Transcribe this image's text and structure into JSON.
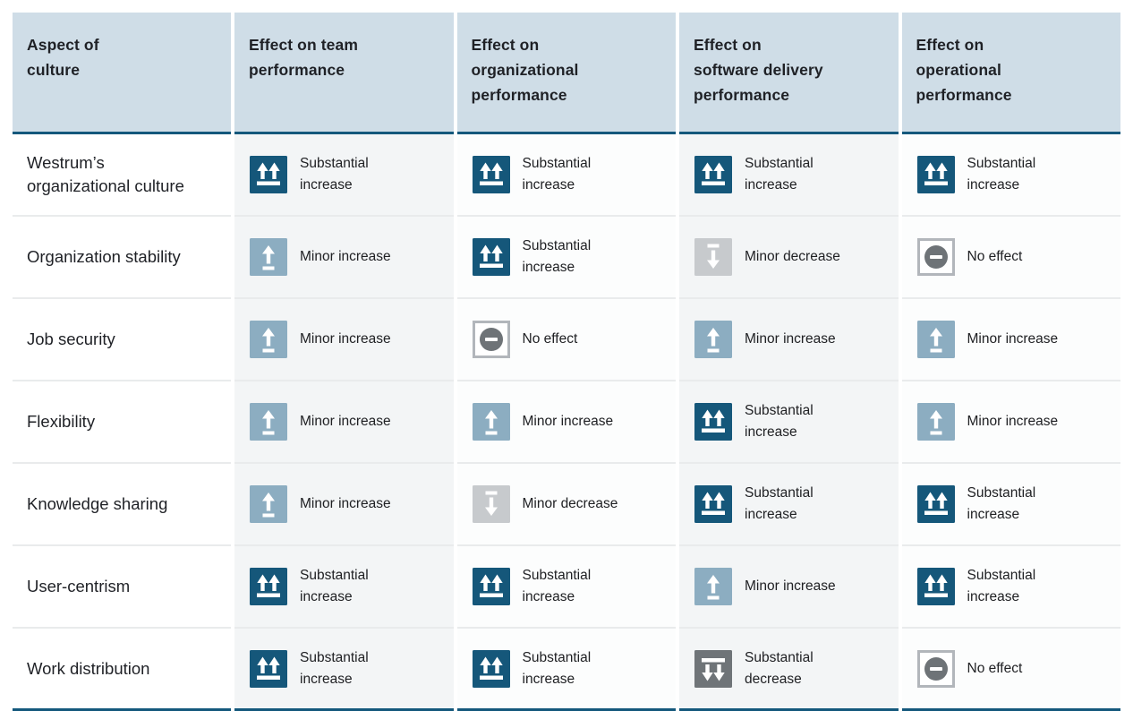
{
  "colors": {
    "header_bg": "#cfdde7",
    "accent_border": "#14587c",
    "row_divider": "#e9ebec",
    "heading_text": "#1f2126",
    "cell_text": "#202124",
    "shaded_column_bg": "#f3f5f6",
    "plain_column_bg": "#fcfdfd",
    "tile_substantial_increase": "#15577a",
    "tile_minor_increase": "#8cadc1",
    "tile_minor_decrease": "#c7cacd",
    "tile_substantial_decrease": "#6f7478",
    "tile_no_effect_fill": "#ffffff",
    "tile_no_effect_border": "#b2b6bb",
    "tile_no_effect_circle": "#6e7377",
    "icon_glyph": "#ffffff"
  },
  "header": {
    "columns": [
      {
        "id": "aspect",
        "label": "Aspect of\nculture"
      },
      {
        "id": "team",
        "label": "Effect on team\nperformance"
      },
      {
        "id": "organizational",
        "label": "Effect on\norganizational\nperformance"
      },
      {
        "id": "software_delivery",
        "label": "Effect on\nsoftware delivery\nperformance"
      },
      {
        "id": "operational",
        "label": "Effect on\noperational\nperformance"
      }
    ]
  },
  "effect_types": {
    "substantial_increase": {
      "label": "Substantial\nincrease",
      "icon": "substantial-increase-icon"
    },
    "minor_increase": {
      "label": "Minor increase",
      "icon": "minor-increase-icon"
    },
    "minor_decrease": {
      "label": "Minor decrease",
      "icon": "minor-decrease-icon"
    },
    "substantial_decrease": {
      "label": "Substantial\ndecrease",
      "icon": "substantial-decrease-icon"
    },
    "no_effect": {
      "label": "No effect",
      "icon": "no-effect-icon"
    }
  },
  "rows": [
    {
      "aspect": "Westrum’s\norganizational culture",
      "effects": [
        "substantial_increase",
        "substantial_increase",
        "substantial_increase",
        "substantial_increase"
      ]
    },
    {
      "aspect": "Organization stability",
      "effects": [
        "minor_increase",
        "substantial_increase",
        "minor_decrease",
        "no_effect"
      ]
    },
    {
      "aspect": "Job security",
      "effects": [
        "minor_increase",
        "no_effect",
        "minor_increase",
        "minor_increase"
      ]
    },
    {
      "aspect": "Flexibility",
      "effects": [
        "minor_increase",
        "minor_increase",
        "substantial_increase",
        "minor_increase"
      ]
    },
    {
      "aspect": "Knowledge sharing",
      "effects": [
        "minor_increase",
        "minor_decrease",
        "substantial_increase",
        "substantial_increase"
      ]
    },
    {
      "aspect": "User-centrism",
      "effects": [
        "substantial_increase",
        "substantial_increase",
        "minor_increase",
        "substantial_increase"
      ]
    },
    {
      "aspect": "Work distribution",
      "effects": [
        "substantial_increase",
        "substantial_increase",
        "substantial_decrease",
        "no_effect"
      ]
    }
  ]
}
